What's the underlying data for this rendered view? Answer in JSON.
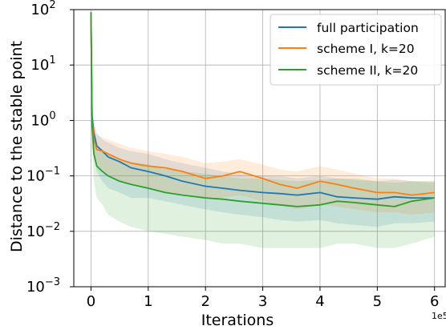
{
  "chart_data": {
    "type": "line",
    "xlabel": "Iterations",
    "ylabel": "Distance to the stable point",
    "x_offset_label": "1e5",
    "xscale": "linear",
    "yscale": "log",
    "xlim": [
      -0.3,
      6.2
    ],
    "ylim": [
      0.001,
      100
    ],
    "grid": true,
    "legend": "top-right",
    "x_ticks": [
      {
        "value": 0,
        "label": "0"
      },
      {
        "value": 1,
        "label": "1"
      },
      {
        "value": 2,
        "label": "2"
      },
      {
        "value": 3,
        "label": "3"
      },
      {
        "value": 4,
        "label": "4"
      },
      {
        "value": 5,
        "label": "5"
      },
      {
        "value": 6,
        "label": "6"
      }
    ],
    "y_ticks": [
      {
        "value": 0.001,
        "base": "10",
        "exp": "−3"
      },
      {
        "value": 0.01,
        "base": "10",
        "exp": "−2"
      },
      {
        "value": 0.1,
        "base": "10",
        "exp": "−1"
      },
      {
        "value": 1,
        "base": "10",
        "exp": "0"
      },
      {
        "value": 10,
        "base": "10",
        "exp": "1"
      },
      {
        "value": 100,
        "base": "10",
        "exp": "2"
      }
    ],
    "series": [
      {
        "name": "full participation",
        "color": "#1f77b4",
        "x": [
          0,
          0.02,
          0.05,
          0.1,
          0.2,
          0.3,
          0.5,
          0.7,
          1.0,
          1.3,
          1.6,
          2.0,
          2.3,
          2.6,
          3.0,
          3.3,
          3.6,
          4.0,
          4.3,
          4.6,
          5.0,
          5.3,
          5.6,
          6.0
        ],
        "y": [
          90,
          1.2,
          0.6,
          0.35,
          0.28,
          0.22,
          0.18,
          0.14,
          0.12,
          0.1,
          0.08,
          0.065,
          0.06,
          0.055,
          0.05,
          0.048,
          0.045,
          0.05,
          0.042,
          0.04,
          0.038,
          0.042,
          0.04,
          0.04
        ],
        "band_low": [
          90,
          0.8,
          0.3,
          0.12,
          0.08,
          0.06,
          0.05,
          0.04,
          0.04,
          0.035,
          0.03,
          0.025,
          0.022,
          0.02,
          0.018,
          0.016,
          0.015,
          0.016,
          0.014,
          0.013,
          0.012,
          0.014,
          0.014,
          0.015
        ],
        "band_high": [
          100,
          1.5,
          1.0,
          0.6,
          0.45,
          0.4,
          0.32,
          0.28,
          0.25,
          0.2,
          0.17,
          0.14,
          0.12,
          0.11,
          0.1,
          0.1,
          0.09,
          0.1,
          0.09,
          0.085,
          0.08,
          0.085,
          0.08,
          0.075
        ]
      },
      {
        "name": "scheme I, k=20",
        "color": "#ff7f0e",
        "x": [
          0,
          0.02,
          0.05,
          0.1,
          0.2,
          0.3,
          0.5,
          0.7,
          1.0,
          1.3,
          1.6,
          2.0,
          2.3,
          2.6,
          3.0,
          3.3,
          3.6,
          4.0,
          4.3,
          4.6,
          5.0,
          5.3,
          5.6,
          6.0
        ],
        "y": [
          80,
          1.0,
          0.45,
          0.3,
          0.28,
          0.25,
          0.2,
          0.17,
          0.15,
          0.14,
          0.12,
          0.09,
          0.1,
          0.12,
          0.09,
          0.07,
          0.06,
          0.08,
          0.07,
          0.06,
          0.05,
          0.05,
          0.045,
          0.05
        ],
        "band_low": [
          80,
          0.6,
          0.25,
          0.15,
          0.12,
          0.1,
          0.08,
          0.07,
          0.06,
          0.05,
          0.045,
          0.04,
          0.04,
          0.045,
          0.035,
          0.03,
          0.025,
          0.03,
          0.028,
          0.025,
          0.022,
          0.022,
          0.02,
          0.022
        ],
        "band_high": [
          100,
          1.4,
          0.8,
          0.55,
          0.5,
          0.45,
          0.38,
          0.32,
          0.28,
          0.25,
          0.22,
          0.17,
          0.18,
          0.2,
          0.16,
          0.13,
          0.12,
          0.15,
          0.13,
          0.11,
          0.09,
          0.09,
          0.08,
          0.08
        ]
      },
      {
        "name": "scheme II, k=20",
        "color": "#2ca02c",
        "x": [
          0,
          0.02,
          0.05,
          0.1,
          0.2,
          0.3,
          0.5,
          0.7,
          1.0,
          1.3,
          1.6,
          2.0,
          2.3,
          2.6,
          3.0,
          3.3,
          3.6,
          4.0,
          4.3,
          4.6,
          5.0,
          5.3,
          5.6,
          6.0
        ],
        "y": [
          90,
          0.8,
          0.25,
          0.15,
          0.12,
          0.1,
          0.08,
          0.07,
          0.06,
          0.05,
          0.045,
          0.04,
          0.038,
          0.035,
          0.032,
          0.03,
          0.028,
          0.03,
          0.035,
          0.033,
          0.03,
          0.028,
          0.035,
          0.04
        ],
        "band_low": [
          90,
          0.4,
          0.08,
          0.04,
          0.03,
          0.02,
          0.015,
          0.012,
          0.01,
          0.009,
          0.008,
          0.007,
          0.006,
          0.006,
          0.005,
          0.005,
          0.005,
          0.005,
          0.006,
          0.006,
          0.005,
          0.005,
          0.006,
          0.008
        ],
        "band_high": [
          100,
          1.2,
          0.5,
          0.35,
          0.3,
          0.25,
          0.2,
          0.18,
          0.16,
          0.14,
          0.12,
          0.11,
          0.1,
          0.09,
          0.09,
          0.085,
          0.08,
          0.085,
          0.09,
          0.09,
          0.08,
          0.075,
          0.08,
          0.08
        ]
      }
    ]
  }
}
